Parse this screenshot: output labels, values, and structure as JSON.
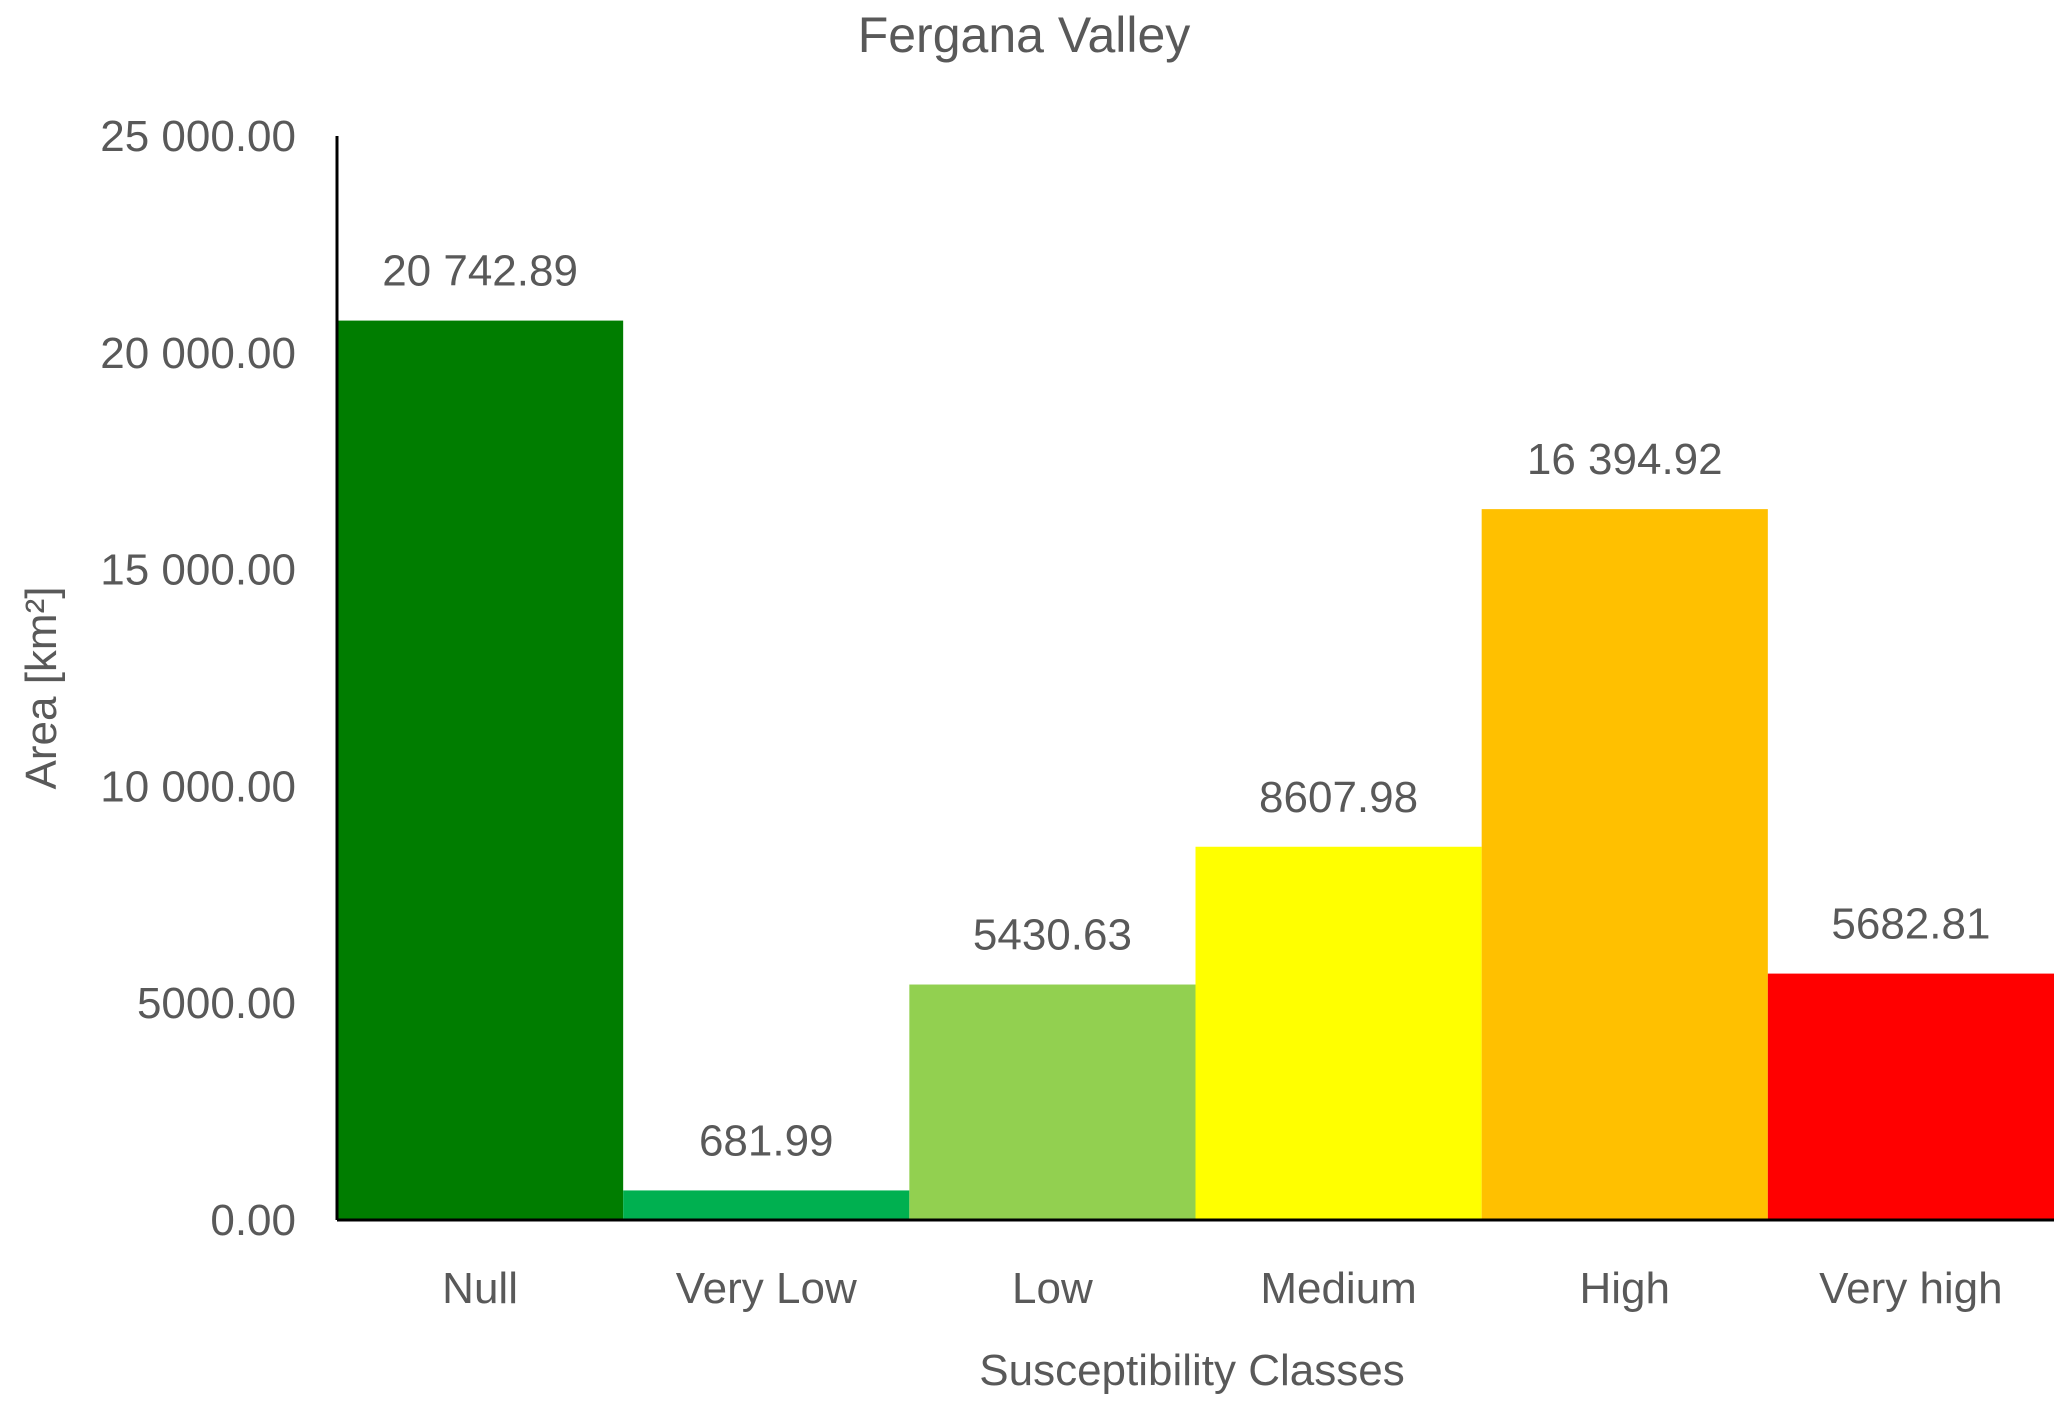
{
  "chart_data": {
    "type": "bar",
    "title": "Fergana Valley",
    "xlabel": "Susceptibility Classes",
    "ylabel": "Area [km²]",
    "ylim": [
      0,
      25000
    ],
    "yticks": [
      "0.00",
      "5000.00",
      "10 000.00",
      "15 000.00",
      "20 000.00",
      "25 000.00"
    ],
    "ytick_values": [
      0,
      5000,
      10000,
      15000,
      20000,
      25000
    ],
    "grid": false,
    "legend": "none",
    "categories": [
      "Null",
      "Very Low",
      "Low",
      "Medium",
      "High",
      "Very high"
    ],
    "values": [
      20742.89,
      681.99,
      5430.63,
      8607.98,
      16394.92,
      5682.81
    ],
    "data_labels": [
      "20 742.89",
      "681.99",
      "5430.63",
      "8607.98",
      "16 394.92",
      "5682.81"
    ],
    "colors": [
      "#007D00",
      "#00B050",
      "#92D050",
      "#FFFF00",
      "#FFC000",
      "#FF0000"
    ]
  }
}
